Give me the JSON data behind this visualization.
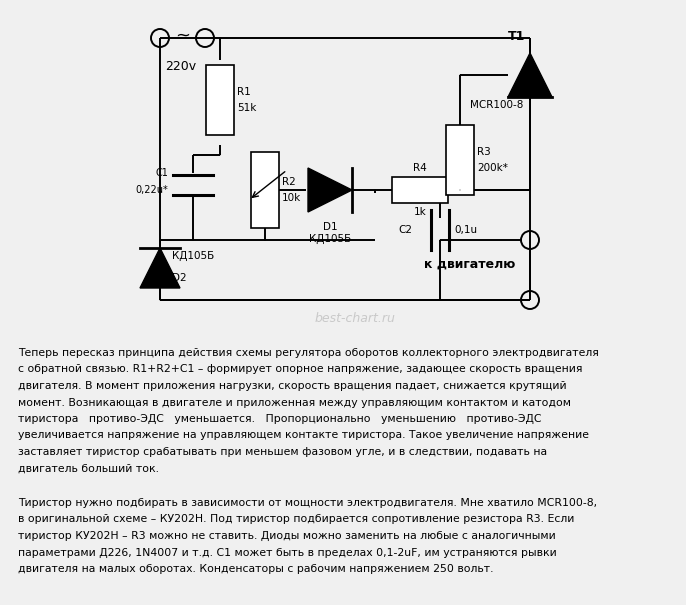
{
  "bg_color": "#f0f0f0",
  "line_color": "#000000",
  "watermark": "best-chart.ru",
  "label_220v": "220v",
  "label_T1": "T1",
  "label_MCR": "MCR100-8",
  "label_motor": "к двигателю",
  "paragraph1_lines": [
    "Теперь пересказ принципа действия схемы регулятора оборотов коллекторного электродвигателя",
    "с обратной связью. R1+R2+C1 – формирует опорное напряжение, задающее скорость вращения",
    "двигателя. В момент приложения нагрузки, скорость вращения падает, снижается крутящий",
    "момент. Возникающая в двигателе и приложенная между управляющим контактом и катодом",
    "тиристора   противо-ЭДС   уменьшается.   Пропорционально   уменьшению   противо-ЭДС",
    "увеличивается напряжение на управляющем контакте тиристора. Такое увеличение напряжение",
    "заставляет тиристор срабатывать при меньшем фазовом угле, и в следствии, подавать на",
    "двигатель больший ток."
  ],
  "paragraph2_lines": [
    "Тиристор нужно подбирать в зависимости от мощности электродвигателя. Мне хватило MCR100-8,",
    "в оригинальной схеме – КУ202Н. Под тиристор подбирается сопротивление резистора R3. Если",
    "тиристор КУ202Н – R3 можно не ставить. Диоды можно заменить на любые с аналогичными",
    "параметрами Д226, 1N4007 и т.д. C1 может быть в пределах 0,1-2uF, им устраняются рывки",
    "двигателя на малых оборотах. Конденсаторы с рабочим напряжением 250 вольт."
  ]
}
